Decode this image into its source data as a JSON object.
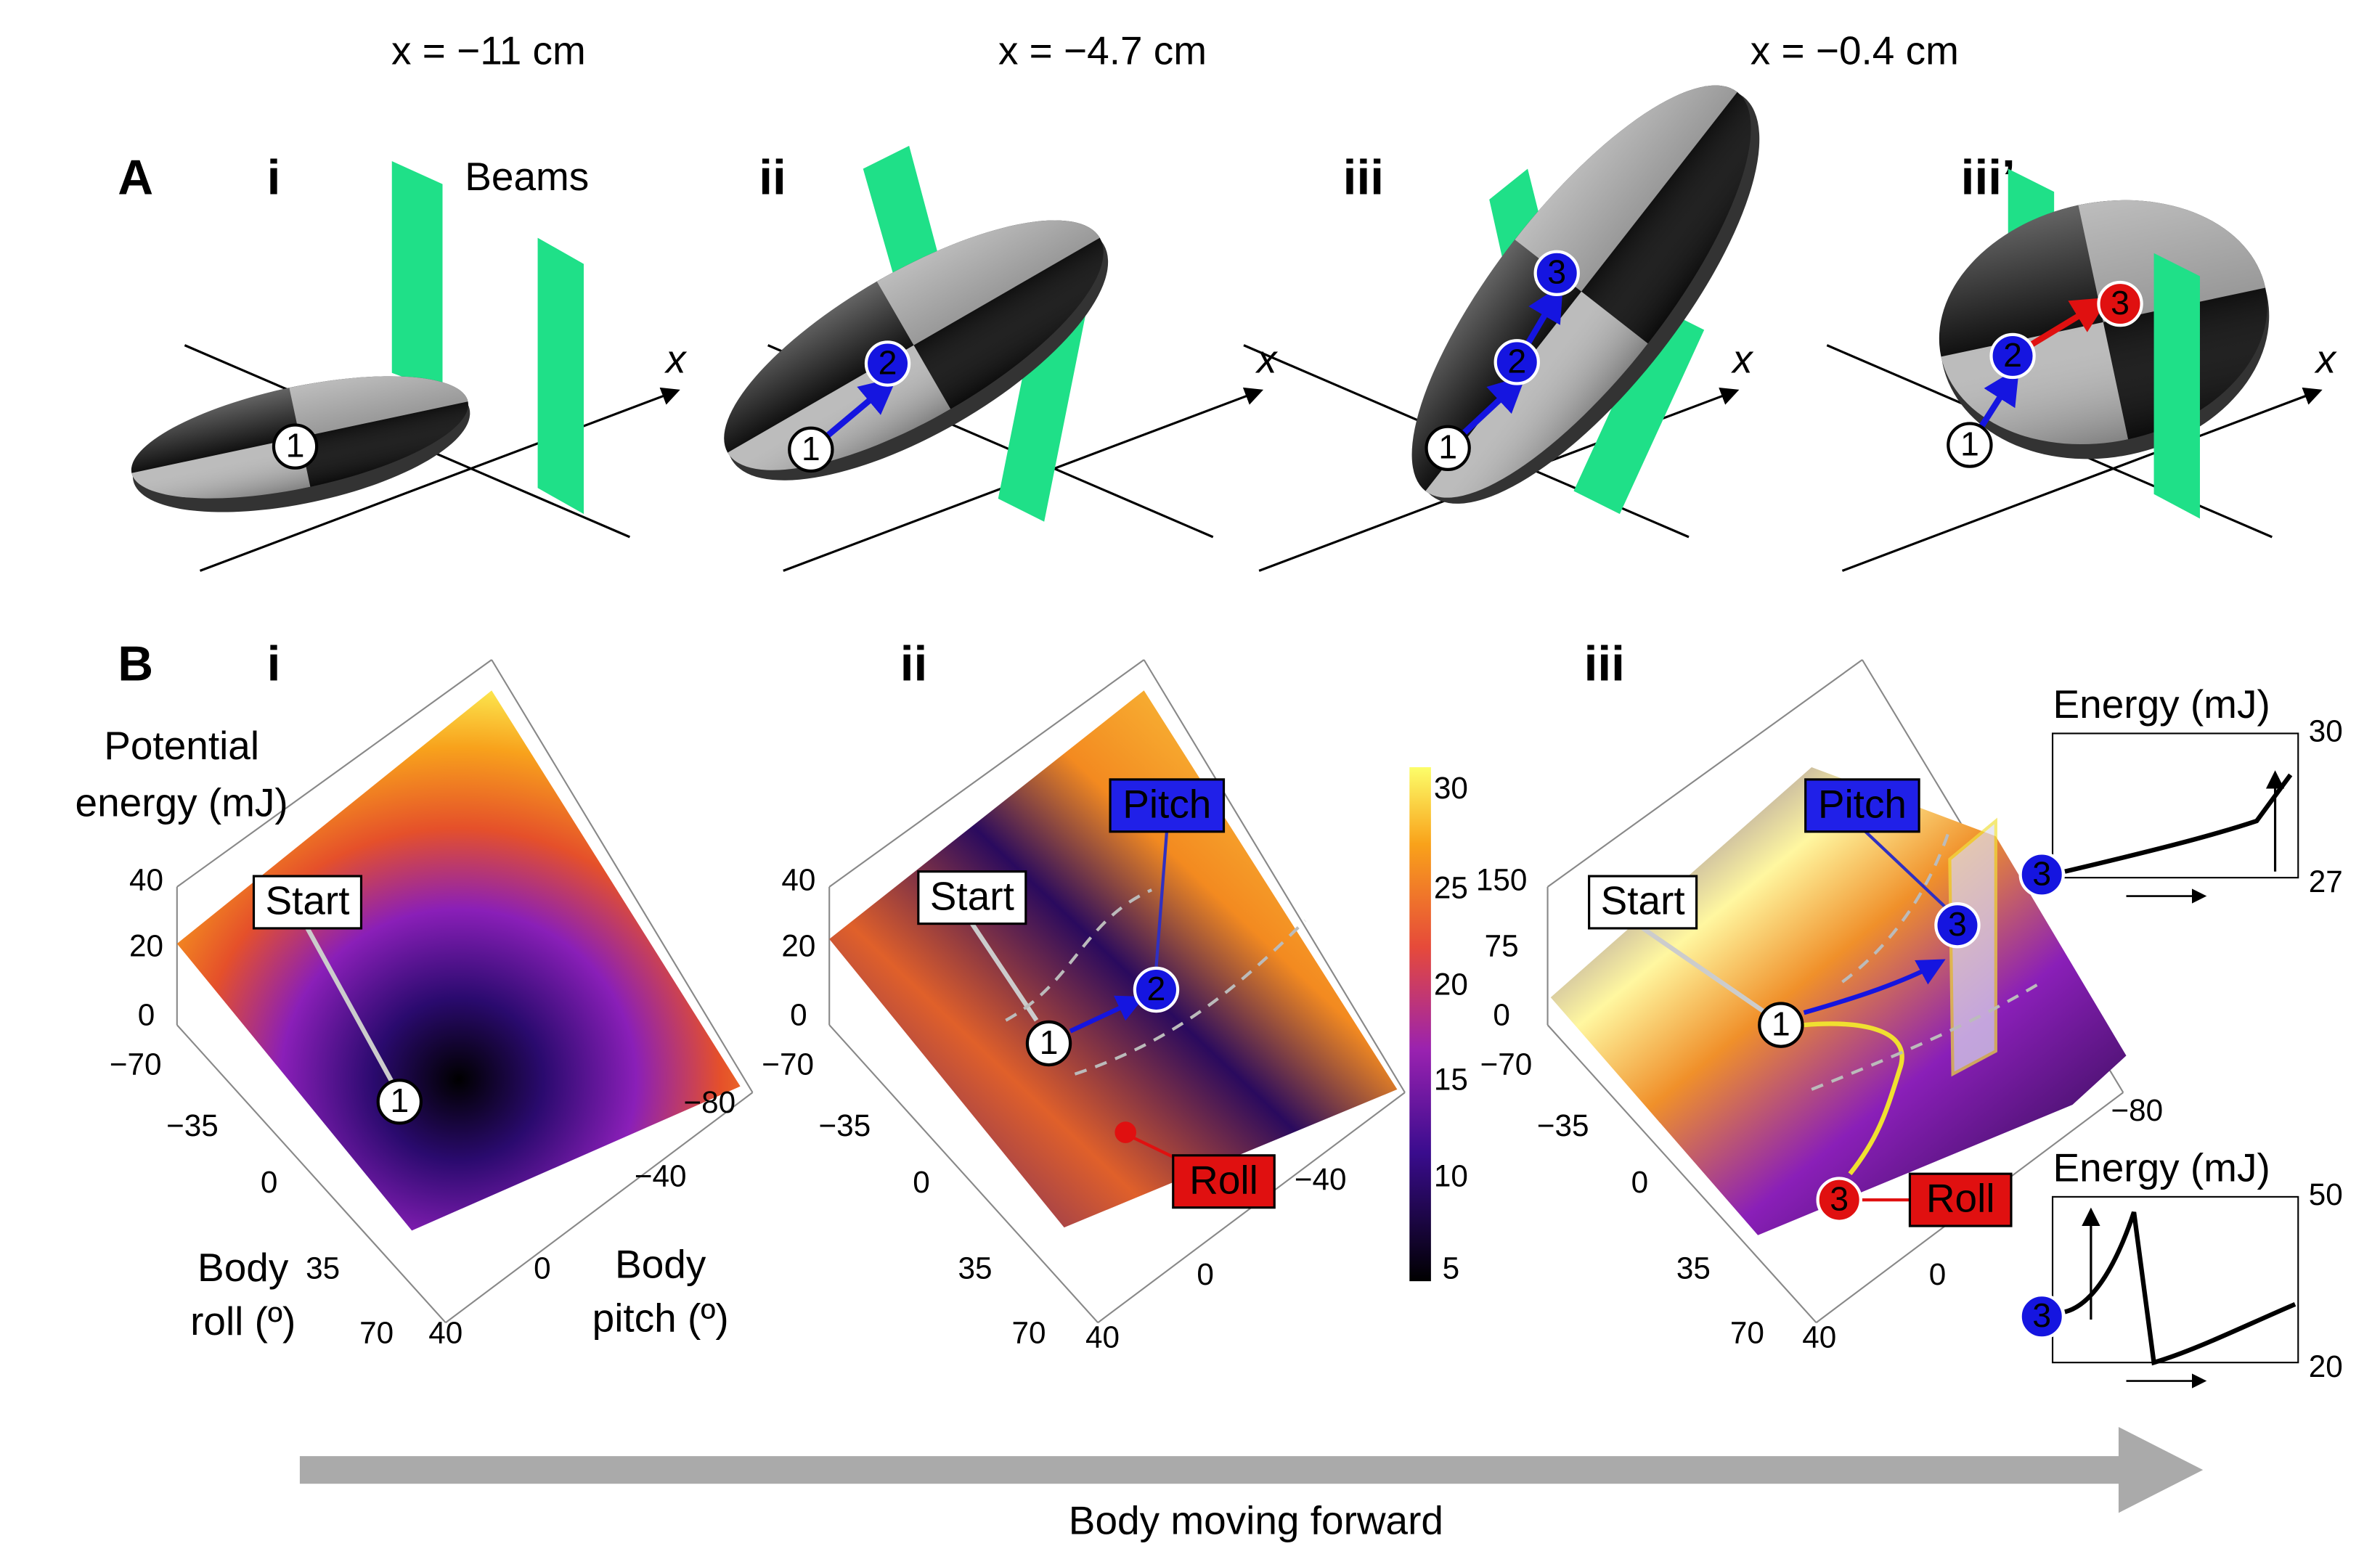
{
  "columns": [
    "x = −11 cm",
    "x = −4.7 cm",
    "x = −0.4 cm"
  ],
  "panel_a": {
    "label": "A",
    "beams_label": "Beams",
    "axis_label": "x",
    "subpanels": [
      {
        "label": "i",
        "markers": [
          "1"
        ]
      },
      {
        "label": "ii",
        "markers": [
          "1",
          "2"
        ]
      },
      {
        "label": "iii",
        "markers": [
          "1",
          "2",
          "3"
        ]
      },
      {
        "label": "iii’",
        "markers": [
          "1",
          "2",
          "3"
        ]
      }
    ]
  },
  "panel_b": {
    "label": "B",
    "z_axis_label": [
      "Potential",
      "energy (mJ)"
    ],
    "roll_label": [
      "Body",
      "roll (º)"
    ],
    "pitch_label": [
      "Body",
      "pitch (º)"
    ],
    "start": "Start",
    "pitch": "Pitch",
    "roll": "Roll",
    "subpanels": [
      {
        "label": "i",
        "zticks": [
          "40",
          "20",
          "0"
        ],
        "roll_ticks": [
          "−70",
          "−35",
          "0",
          "35",
          "70"
        ],
        "pitch_ticks": [
          "−80",
          "−40",
          "0",
          "40"
        ],
        "markers": [
          "1"
        ]
      },
      {
        "label": "ii",
        "zticks": [
          "40",
          "20",
          "0"
        ],
        "roll_ticks": [
          "−70",
          "−35",
          "0",
          "35",
          "70"
        ],
        "pitch_ticks": [
          "−40",
          "0",
          "40"
        ],
        "markers": [
          "1",
          "2"
        ]
      },
      {
        "label": "iii",
        "zticks": [
          "150",
          "75",
          "0"
        ],
        "roll_ticks": [
          "−70",
          "−35",
          "0",
          "35",
          "70"
        ],
        "pitch_ticks": [
          "−80",
          "0",
          "40"
        ],
        "markers": [
          "1",
          "3",
          "3"
        ]
      }
    ],
    "colorbar_ticks": [
      "30",
      "25",
      "20",
      "15",
      "10",
      "5"
    ],
    "insets": [
      {
        "title": "Energy (mJ)",
        "top": "30",
        "bottom": "27",
        "marker": "3"
      },
      {
        "title": "Energy (mJ)",
        "top": "50",
        "bottom": "20",
        "marker": "3"
      }
    ]
  },
  "footer": "Body moving forward"
}
